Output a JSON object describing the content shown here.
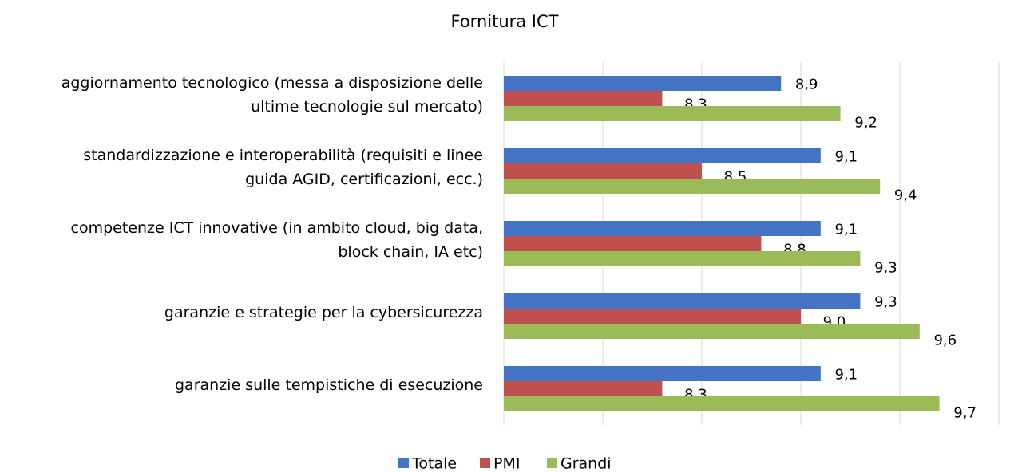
{
  "chart_data": {
    "type": "hbar",
    "title": "Fornitura ICT",
    "categories": [
      [
        "aggiornamento tecnologico (messa a disposizione delle",
        "ultime tecnologie sul mercato)"
      ],
      [
        "standardizzazione e interoperabilità (requisiti e linee",
        "guida AGID, certificazioni, ecc.)"
      ],
      [
        "competenze ICT innovative (in ambito cloud, big data,",
        "block chain, IA etc)"
      ],
      [
        "garanzie e strategie per la cybersicurezza"
      ],
      [
        "garanzie   sulle tempistiche di esecuzione"
      ]
    ],
    "series": [
      {
        "name": "Totale",
        "color": "#4472c4",
        "values": [
          8.9,
          9.1,
          9.1,
          9.3,
          9.1
        ],
        "value_labels": [
          "8,9",
          "9,1",
          "9,1",
          "9,3",
          "9,1"
        ]
      },
      {
        "name": "PMI",
        "color": "#c0504d",
        "values": [
          8.3,
          8.5,
          8.8,
          9.0,
          8.3
        ],
        "value_labels": [
          "8,3",
          "8,5",
          "8,8",
          "9,0",
          "8,3"
        ]
      },
      {
        "name": "Grandi",
        "color": "#9bbb59",
        "values": [
          9.2,
          9.4,
          9.3,
          9.6,
          9.7
        ],
        "value_labels": [
          "9,2",
          "9,4",
          "9,3",
          "9,6",
          "9,7"
        ]
      }
    ],
    "xlim": [
      7.5,
      10
    ],
    "xticks": [
      7.5,
      8,
      8.5,
      9,
      9.5,
      10
    ],
    "grid": true,
    "legend": "bottom"
  }
}
